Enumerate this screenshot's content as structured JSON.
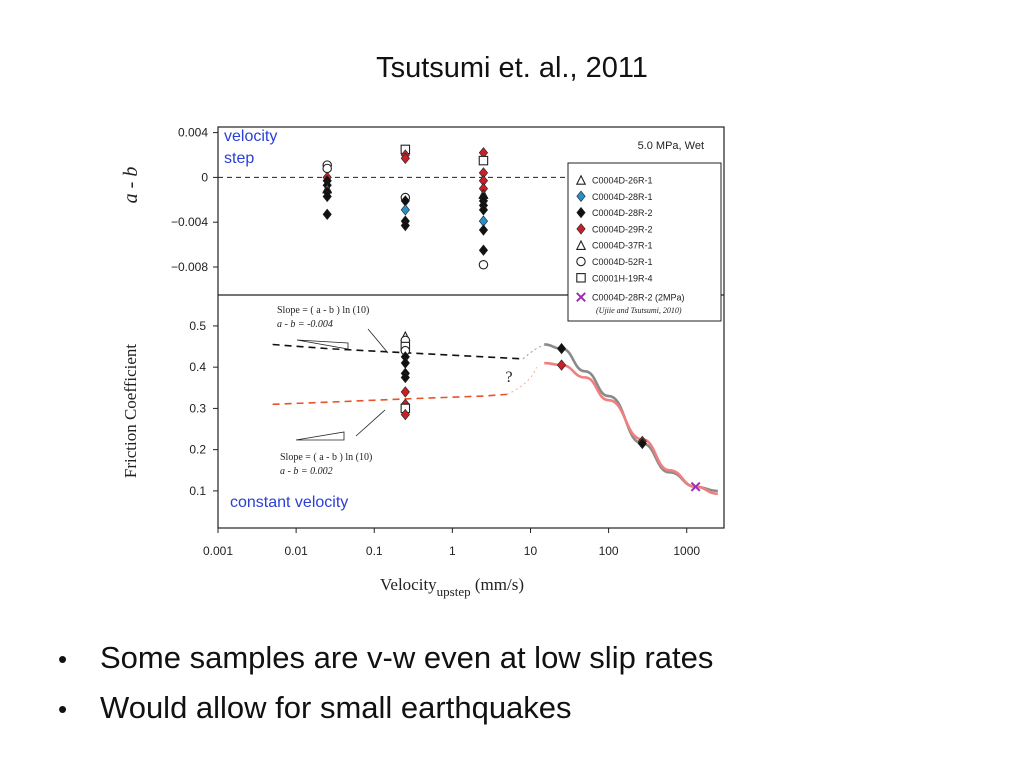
{
  "slide": {
    "title": "Tsutsumi et. al., 2011",
    "bullets": [
      "Some samples are v-w even at low slip rates",
      "Would allow for small earthquakes"
    ]
  },
  "chart_data": [
    {
      "type": "scatter",
      "panel": "top",
      "ylabel": "a - b",
      "ylim": [
        -0.0105,
        0.0045
      ],
      "yticks": [
        "0.004",
        "0",
        "−0.004",
        "−0.008"
      ],
      "ytick_values": [
        0.004,
        0,
        -0.004,
        -0.008
      ],
      "x_scale": "log",
      "xlim": [
        0.001,
        3000
      ],
      "annotation": "5.0 MPa, Wet",
      "panel_label": [
        "velocity",
        "step"
      ],
      "reference_line": 0,
      "legend": {
        "placement": "right",
        "entries": [
          {
            "marker": "triangle-open",
            "label": "C0004D-26R-1"
          },
          {
            "marker": "diamond-blue",
            "label": "C0004D-28R-1"
          },
          {
            "marker": "diamond-black",
            "label": "C0004D-28R-2"
          },
          {
            "marker": "diamond-red",
            "label": "C0004D-29R-2"
          },
          {
            "marker": "triangle-open",
            "label": "C0004D-37R-1"
          },
          {
            "marker": "circle-open",
            "label": "C0004D-52R-1"
          },
          {
            "marker": "square-open",
            "label": "C0001H-19R-4"
          },
          {
            "marker": "x-purple",
            "label": "C0004D-28R-2  (2MPa)"
          }
        ],
        "citation": "(Ujiie and Tsutsumi, 2010)"
      },
      "points": [
        {
          "x": 0.025,
          "y": 0.0011,
          "m": "circle-open"
        },
        {
          "x": 0.025,
          "y": 0.0008,
          "m": "circle-open"
        },
        {
          "x": 0.025,
          "y": 0.0,
          "m": "diamond-red"
        },
        {
          "x": 0.025,
          "y": -0.0003,
          "m": "diamond-black"
        },
        {
          "x": 0.025,
          "y": -0.0007,
          "m": "diamond-black"
        },
        {
          "x": 0.025,
          "y": -0.001,
          "m": "triangle-open"
        },
        {
          "x": 0.025,
          "y": -0.0013,
          "m": "diamond-black"
        },
        {
          "x": 0.025,
          "y": -0.0017,
          "m": "diamond-black"
        },
        {
          "x": 0.025,
          "y": -0.0033,
          "m": "diamond-black"
        },
        {
          "x": 0.25,
          "y": 0.0025,
          "m": "square-open"
        },
        {
          "x": 0.25,
          "y": 0.002,
          "m": "diamond-red"
        },
        {
          "x": 0.25,
          "y": 0.0017,
          "m": "diamond-red"
        },
        {
          "x": 0.25,
          "y": -0.0018,
          "m": "circle-open"
        },
        {
          "x": 0.25,
          "y": -0.0021,
          "m": "diamond-black"
        },
        {
          "x": 0.25,
          "y": -0.0029,
          "m": "diamond-blue"
        },
        {
          "x": 0.25,
          "y": -0.0039,
          "m": "diamond-black"
        },
        {
          "x": 0.25,
          "y": -0.0043,
          "m": "diamond-black"
        },
        {
          "x": 2.5,
          "y": 0.0022,
          "m": "diamond-red"
        },
        {
          "x": 2.5,
          "y": 0.0015,
          "m": "square-open"
        },
        {
          "x": 2.5,
          "y": 0.0004,
          "m": "diamond-red"
        },
        {
          "x": 2.5,
          "y": -0.0003,
          "m": "diamond-red"
        },
        {
          "x": 2.5,
          "y": -0.001,
          "m": "diamond-red"
        },
        {
          "x": 2.5,
          "y": -0.0015,
          "m": "triangle-open"
        },
        {
          "x": 2.5,
          "y": -0.0018,
          "m": "diamond-black"
        },
        {
          "x": 2.5,
          "y": -0.0021,
          "m": "diamond-black"
        },
        {
          "x": 2.5,
          "y": -0.0025,
          "m": "diamond-black"
        },
        {
          "x": 2.5,
          "y": -0.0029,
          "m": "diamond-black"
        },
        {
          "x": 2.5,
          "y": -0.0039,
          "m": "diamond-blue"
        },
        {
          "x": 2.5,
          "y": -0.0047,
          "m": "diamond-black"
        },
        {
          "x": 2.5,
          "y": -0.0065,
          "m": "diamond-black"
        },
        {
          "x": 2.5,
          "y": -0.0078,
          "m": "circle-open"
        }
      ]
    },
    {
      "type": "scatter",
      "panel": "bottom",
      "xlabel": "Velocity",
      "xlabel_sub": "upstep",
      "xlabel_unit": "(mm/s)",
      "ylabel": "Friction Coefficient",
      "x_scale": "log",
      "xlim": [
        0.001,
        3000
      ],
      "xticks": [
        "0.001",
        "0.01",
        "0.1",
        "1",
        "10",
        "100",
        "1000"
      ],
      "xtick_values": [
        0.001,
        0.01,
        0.1,
        1,
        10,
        100,
        1000
      ],
      "ylim": [
        0.01,
        0.575
      ],
      "yticks": [
        "0.5",
        "0.4",
        "0.3",
        "0.2",
        "0.1"
      ],
      "ytick_values": [
        0.5,
        0.4,
        0.3,
        0.2,
        0.1
      ],
      "panel_label": "constant velocity",
      "question_mark": "?",
      "slope_annotations": {
        "upper": {
          "line1": "Slope = ( a - b ) ln (10)",
          "line2": "a - b =  -0.004"
        },
        "lower": {
          "line1": "Slope =  ( a - b ) ln (10)",
          "line2": "a - b = 0.002"
        }
      },
      "series": [
        {
          "style": "dashed-black",
          "color": "#111111",
          "x": [
            0.005,
            0.025,
            0.25,
            2.5,
            8
          ],
          "y": [
            0.455,
            0.445,
            0.435,
            0.425,
            0.42
          ]
        },
        {
          "style": "dashed-orange",
          "color": "#e8542a",
          "x": [
            0.005,
            0.025,
            0.25,
            2.5,
            5
          ],
          "y": [
            0.31,
            0.315,
            0.323,
            0.33,
            0.334
          ]
        },
        {
          "style": "curve-gray",
          "color": "#8a8a8a",
          "x": [
            15,
            25,
            50,
            100,
            270,
            600,
            1300,
            2500
          ],
          "y": [
            0.455,
            0.445,
            0.39,
            0.33,
            0.215,
            0.145,
            0.11,
            0.1
          ]
        },
        {
          "style": "curve-red",
          "color": "#f08080",
          "x": [
            15,
            25,
            50,
            100,
            270,
            600,
            1300,
            2500
          ],
          "y": [
            0.41,
            0.405,
            0.375,
            0.32,
            0.225,
            0.15,
            0.11,
            0.093
          ]
        }
      ],
      "points": [
        {
          "x": 0.25,
          "y": 0.475,
          "m": "triangle-open"
        },
        {
          "x": 0.25,
          "y": 0.465,
          "m": "circle-open"
        },
        {
          "x": 0.25,
          "y": 0.45,
          "m": "square-open"
        },
        {
          "x": 0.25,
          "y": 0.44,
          "m": "circle-open"
        },
        {
          "x": 0.25,
          "y": 0.425,
          "m": "diamond-black"
        },
        {
          "x": 0.25,
          "y": 0.41,
          "m": "diamond-black"
        },
        {
          "x": 0.25,
          "y": 0.385,
          "m": "diamond-black"
        },
        {
          "x": 0.25,
          "y": 0.375,
          "m": "diamond-black"
        },
        {
          "x": 0.25,
          "y": 0.34,
          "m": "diamond-red"
        },
        {
          "x": 0.25,
          "y": 0.31,
          "m": "diamond-red"
        },
        {
          "x": 0.25,
          "y": 0.3,
          "m": "square-open"
        },
        {
          "x": 0.25,
          "y": 0.285,
          "m": "diamond-red"
        },
        {
          "x": 25,
          "y": 0.445,
          "m": "diamond-black"
        },
        {
          "x": 25,
          "y": 0.405,
          "m": "diamond-red"
        },
        {
          "x": 270,
          "y": 0.22,
          "m": "diamond-red"
        },
        {
          "x": 270,
          "y": 0.215,
          "m": "diamond-black"
        },
        {
          "x": 1300,
          "y": 0.11,
          "m": "x-purple"
        }
      ]
    }
  ]
}
